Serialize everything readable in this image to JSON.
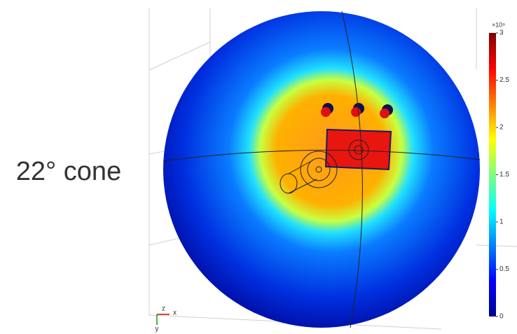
{
  "label": "22° cone",
  "colorbar": {
    "exponent": "×10⁹",
    "lim": [
      0,
      3
    ],
    "ticks": [
      0,
      0.5,
      1,
      1.5,
      2,
      2.5,
      3
    ]
  },
  "axes": {
    "x": "x",
    "y": "y",
    "z": "z"
  }
}
